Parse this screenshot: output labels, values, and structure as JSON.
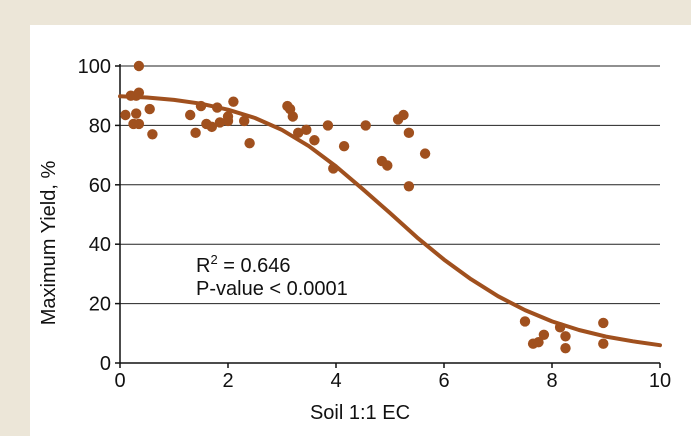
{
  "chart_data": {
    "type": "scatter",
    "title": "",
    "xlabel": "Soil 1:1 EC",
    "ylabel": "Maximum Yield, %",
    "xlim": [
      0,
      10
    ],
    "ylim": [
      0,
      100
    ],
    "xticks": [
      0,
      2,
      4,
      6,
      8,
      10
    ],
    "yticks": [
      0,
      20,
      40,
      60,
      80,
      100
    ],
    "grid": "horizontal",
    "colors": {
      "points": "#a0501e",
      "curve": "#a0501e",
      "grid": "#222222"
    },
    "annotations": [
      {
        "text": "R",
        "sup": "2",
        "suffix": " = 0.646"
      },
      {
        "text": "P-value < 0.0001"
      }
    ],
    "series": [
      {
        "type": "scatter",
        "points": [
          [
            0.1,
            83.5
          ],
          [
            0.2,
            90
          ],
          [
            0.25,
            80.5
          ],
          [
            0.3,
            90
          ],
          [
            0.3,
            84
          ],
          [
            0.35,
            100
          ],
          [
            0.35,
            91
          ],
          [
            0.35,
            80.5
          ],
          [
            0.55,
            85.5
          ],
          [
            0.6,
            77
          ],
          [
            1.3,
            83.5
          ],
          [
            1.4,
            77.5
          ],
          [
            1.5,
            86.5
          ],
          [
            1.6,
            80.5
          ],
          [
            1.7,
            79.5
          ],
          [
            1.8,
            86
          ],
          [
            1.85,
            81
          ],
          [
            2.0,
            81.5
          ],
          [
            2.0,
            83
          ],
          [
            2.1,
            88
          ],
          [
            2.3,
            81.5
          ],
          [
            2.4,
            74
          ],
          [
            3.1,
            86.5
          ],
          [
            3.15,
            85.5
          ],
          [
            3.2,
            83
          ],
          [
            3.3,
            77.5
          ],
          [
            3.45,
            78.5
          ],
          [
            3.6,
            75
          ],
          [
            3.85,
            80
          ],
          [
            3.95,
            65.5
          ],
          [
            4.15,
            73
          ],
          [
            4.55,
            80
          ],
          [
            4.85,
            68
          ],
          [
            4.95,
            66.5
          ],
          [
            5.15,
            82
          ],
          [
            5.25,
            83.5
          ],
          [
            5.35,
            77.5
          ],
          [
            5.35,
            59.5
          ],
          [
            5.65,
            70.5
          ],
          [
            7.5,
            14
          ],
          [
            7.65,
            6.5
          ],
          [
            7.75,
            7
          ],
          [
            7.85,
            9.5
          ],
          [
            8.15,
            12
          ],
          [
            8.25,
            9
          ],
          [
            8.25,
            5
          ],
          [
            8.95,
            13.5
          ],
          [
            8.95,
            6.5
          ]
        ]
      },
      {
        "type": "line",
        "name": "",
        "points": [
          [
            0,
            89.8
          ],
          [
            0.5,
            89.4
          ],
          [
            1,
            88.6
          ],
          [
            1.5,
            87.3
          ],
          [
            2,
            85.3
          ],
          [
            2.5,
            82.5
          ],
          [
            3,
            78.5
          ],
          [
            3.5,
            73.0
          ],
          [
            4,
            66.2
          ],
          [
            4.5,
            58.5
          ],
          [
            5,
            50.5
          ],
          [
            5.5,
            42.3
          ],
          [
            6,
            34.8
          ],
          [
            6.5,
            28.2
          ],
          [
            7,
            22.5
          ],
          [
            7.5,
            17.8
          ],
          [
            8,
            14.0
          ],
          [
            8.5,
            11.1
          ],
          [
            9,
            8.9
          ],
          [
            9.5,
            7.3
          ],
          [
            10,
            6.0
          ]
        ]
      }
    ]
  }
}
